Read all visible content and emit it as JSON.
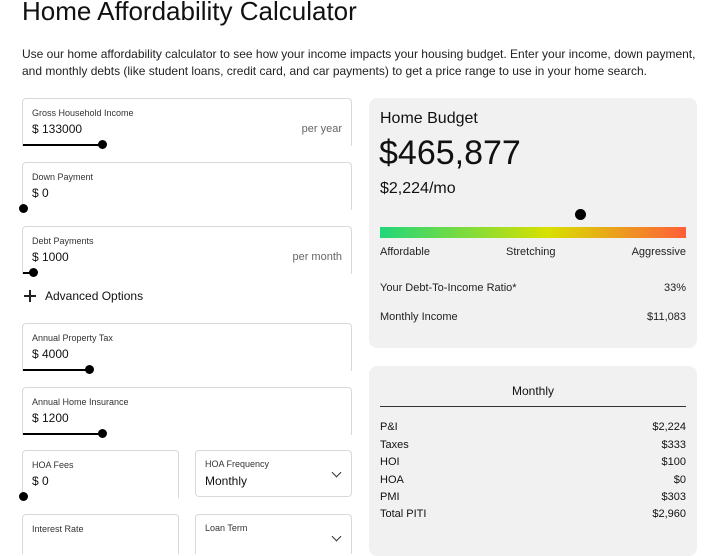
{
  "page": {
    "title": "Home Affordability Calculator",
    "intro": "Use our home affordability calculator to see how your income impacts your housing budget. Enter your income, down payment, and monthly debts (like student loans, credit card, and car payments) to get a price range to use in your home search."
  },
  "inputs": {
    "income": {
      "label": "Gross Household Income",
      "value": "$ 133000",
      "suffix": "per year",
      "slider_fraction": 0.24
    },
    "down_payment": {
      "label": "Down Payment",
      "value": "$ 0",
      "slider_fraction": 0.0
    },
    "debt": {
      "label": "Debt Payments",
      "value": "$ 1000",
      "suffix": "per month",
      "slider_fraction": 0.03
    },
    "advanced_label": "Advanced Options",
    "property_tax": {
      "label": "Annual Property Tax",
      "value": "$ 4000",
      "slider_fraction": 0.2
    },
    "home_insurance": {
      "label": "Annual Home Insurance",
      "value": "$ 1200",
      "slider_fraction": 0.24
    },
    "hoa_fees": {
      "label": "HOA Fees",
      "value": "$ 0",
      "slider_fraction": 0.0
    },
    "hoa_frequency": {
      "label": "HOA Frequency",
      "value": "Monthly"
    },
    "interest_rate": {
      "label": "Interest Rate"
    },
    "loan_term": {
      "label": "Loan Term"
    }
  },
  "budget": {
    "title": "Home Budget",
    "amount": "$465,877",
    "monthly": "$2,224/mo",
    "meter_fraction": 0.655,
    "meter_labels": [
      "Affordable",
      "Stretching",
      "Aggressive"
    ],
    "dti_label": "Your Debt-To-Income Ratio*",
    "dti_value": "33%",
    "income_label": "Monthly Income",
    "income_value": "$11,083"
  },
  "breakdown": {
    "heading": "Monthly",
    "rows": [
      {
        "label": "P&I",
        "value": "$2,224"
      },
      {
        "label": "Taxes",
        "value": "$333"
      },
      {
        "label": "HOI",
        "value": "$100"
      },
      {
        "label": "HOA",
        "value": "$0"
      },
      {
        "label": "PMI",
        "value": "$303"
      },
      {
        "label": "Total PITI",
        "value": "$2,960"
      }
    ]
  },
  "colors": {
    "panel_bg": "#f1f1f1",
    "meter_start": "#22d67a",
    "meter_mid": "#d8e000",
    "meter_end": "#ff5e3a"
  }
}
